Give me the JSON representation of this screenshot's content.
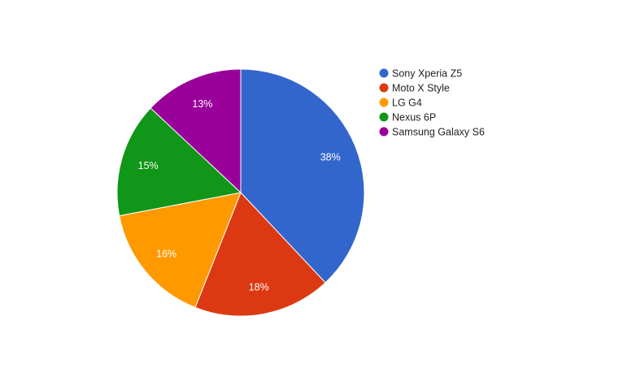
{
  "chart_data": {
    "type": "pie",
    "title": "",
    "legend_position": "right",
    "slices": [
      {
        "label": "Sony Xperia Z5",
        "value": 38,
        "display": "38%",
        "color": "#3366cc"
      },
      {
        "label": "Moto X Style",
        "value": 18,
        "display": "18%",
        "color": "#dc3912"
      },
      {
        "label": "LG G4",
        "value": 16,
        "display": "16%",
        "color": "#ff9900"
      },
      {
        "label": "Nexus 6P",
        "value": 15,
        "display": "15%",
        "color": "#109618"
      },
      {
        "label": "Samsung Galaxy S6",
        "value": 13,
        "display": "13%",
        "color": "#990099"
      }
    ]
  }
}
